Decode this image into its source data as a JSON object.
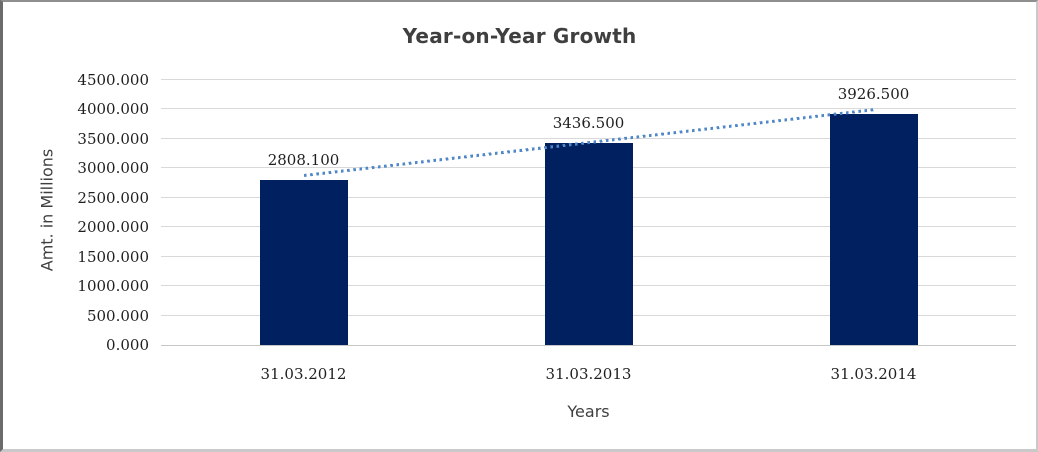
{
  "chart_data": {
    "type": "bar",
    "title": "Year-on-Year Growth",
    "xlabel": "Years",
    "ylabel": "Amt. in Millions",
    "categories": [
      "31.03.2012",
      "31.03.2013",
      "31.03.2014"
    ],
    "values": [
      2808.1,
      3436.5,
      3926.5
    ],
    "value_labels": [
      "2808.100",
      "3436.500",
      "3926.500"
    ],
    "ylim": [
      0,
      4500
    ],
    "ytick_step": 500,
    "ytick_labels": [
      "0.000",
      "500.000",
      "1000.000",
      "1500.000",
      "2000.000",
      "2500.000",
      "3000.000",
      "3500.000",
      "4000.000",
      "4500.000"
    ],
    "grid": true,
    "legend_position": "none",
    "trendline": {
      "type": "linear",
      "style": "dotted"
    },
    "colors": {
      "bar": "#002060",
      "trendline": "#4f87c7",
      "gridline": "#d9d9d9",
      "axis_line": "#c6c6c6",
      "title_text": "#3f3f3f",
      "tick_text": "#1f1f1f",
      "axis_title_text": "#3f3f3f",
      "background": "#ffffff"
    }
  }
}
